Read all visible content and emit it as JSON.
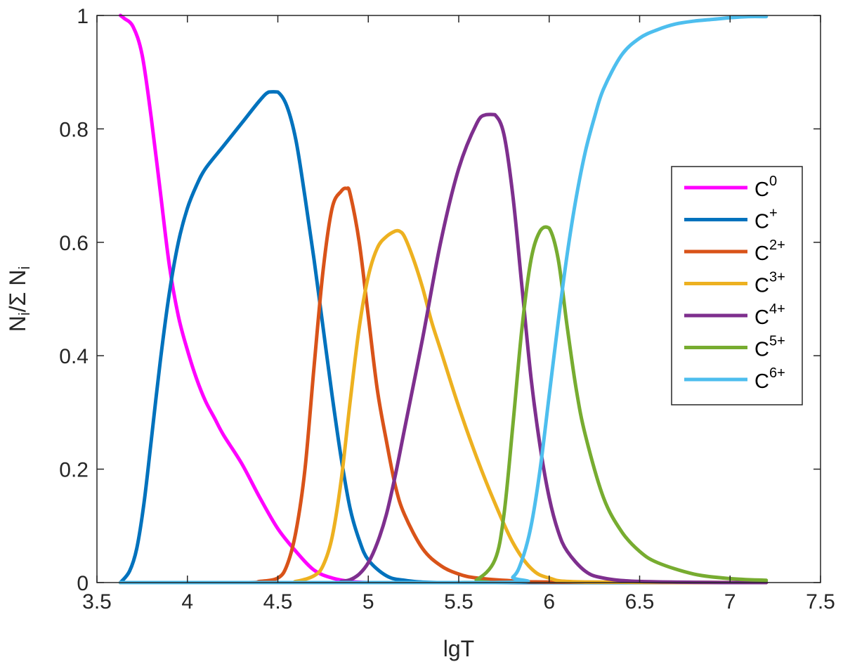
{
  "chart_data": {
    "type": "line",
    "title": "",
    "xlabel": "lgT",
    "ylabel": {
      "base": "N",
      "sub1": "i",
      "mid": "/Σ N",
      "sub2": "i"
    },
    "xlim": [
      3.5,
      7.5
    ],
    "ylim": [
      0,
      1
    ],
    "xticks": [
      "3.5",
      "4",
      "4.5",
      "5",
      "5.5",
      "6",
      "6.5",
      "7",
      "7.5"
    ],
    "yticks": [
      "0",
      "0.2",
      "0.4",
      "0.6",
      "0.8",
      "1"
    ],
    "grid": false,
    "legend_position": "right",
    "series": [
      {
        "name": "C0",
        "label_base": "C",
        "label_sup": "0",
        "color": "#ff00ff",
        "x": [
          3.63,
          3.65,
          3.7,
          3.75,
          3.8,
          3.85,
          3.9,
          3.95,
          4.0,
          4.05,
          4.1,
          4.15,
          4.2,
          4.3,
          4.4,
          4.5,
          4.6,
          4.7,
          4.8,
          4.9,
          5.0,
          5.2,
          5.5,
          6.0,
          6.5,
          7.0,
          7.2
        ],
        "y": [
          1.0,
          0.995,
          0.98,
          0.93,
          0.82,
          0.69,
          0.56,
          0.47,
          0.41,
          0.36,
          0.32,
          0.29,
          0.26,
          0.21,
          0.15,
          0.095,
          0.055,
          0.022,
          0.008,
          0.002,
          0.0,
          0.0,
          0.0,
          0.0,
          0.0,
          0.0,
          0.0
        ]
      },
      {
        "name": "C+",
        "label_base": "C",
        "label_sup": "+",
        "color": "#0072bd",
        "x": [
          3.63,
          3.68,
          3.72,
          3.76,
          3.8,
          3.85,
          3.9,
          3.95,
          4.0,
          4.05,
          4.1,
          4.2,
          4.3,
          4.4,
          4.45,
          4.5,
          4.55,
          4.6,
          4.65,
          4.7,
          4.75,
          4.8,
          4.85,
          4.9,
          4.95,
          5.0,
          5.1,
          5.2,
          5.4,
          6.0,
          7.2
        ],
        "y": [
          0.0,
          0.02,
          0.06,
          0.14,
          0.25,
          0.39,
          0.51,
          0.6,
          0.66,
          0.7,
          0.73,
          0.77,
          0.81,
          0.85,
          0.865,
          0.865,
          0.84,
          0.78,
          0.68,
          0.57,
          0.45,
          0.33,
          0.22,
          0.13,
          0.075,
          0.04,
          0.012,
          0.004,
          0.0,
          0.0,
          0.0
        ]
      },
      {
        "name": "C2+",
        "label_base": "C",
        "label_sup": "2+",
        "color": "#d95319",
        "x": [
          3.63,
          4.3,
          4.4,
          4.5,
          4.55,
          4.6,
          4.65,
          4.7,
          4.75,
          4.8,
          4.85,
          4.88,
          4.9,
          4.95,
          5.0,
          5.05,
          5.1,
          5.15,
          5.2,
          5.3,
          5.4,
          5.5,
          5.6,
          5.8,
          6.0,
          7.2
        ],
        "y": [
          0.0,
          0.0,
          0.002,
          0.008,
          0.03,
          0.09,
          0.2,
          0.38,
          0.55,
          0.66,
          0.69,
          0.695,
          0.685,
          0.6,
          0.47,
          0.34,
          0.25,
          0.17,
          0.12,
          0.06,
          0.03,
          0.015,
          0.008,
          0.003,
          0.001,
          0.0
        ]
      },
      {
        "name": "C3+",
        "label_base": "C",
        "label_sup": "3+",
        "color": "#edb120",
        "x": [
          3.63,
          4.5,
          4.6,
          4.7,
          4.75,
          4.8,
          4.85,
          4.9,
          4.95,
          5.0,
          5.05,
          5.1,
          5.15,
          5.17,
          5.2,
          5.25,
          5.3,
          5.35,
          5.4,
          5.5,
          5.6,
          5.7,
          5.8,
          5.9,
          6.0,
          6.2,
          7.2
        ],
        "y": [
          0.0,
          0.0,
          0.002,
          0.012,
          0.03,
          0.08,
          0.18,
          0.32,
          0.45,
          0.54,
          0.59,
          0.61,
          0.62,
          0.62,
          0.61,
          0.57,
          0.52,
          0.46,
          0.41,
          0.31,
          0.22,
          0.14,
          0.07,
          0.025,
          0.008,
          0.001,
          0.0
        ]
      },
      {
        "name": "C4+",
        "label_base": "C",
        "label_sup": "4+",
        "color": "#7e2f8e",
        "x": [
          3.63,
          4.8,
          4.85,
          4.9,
          4.95,
          5.0,
          5.05,
          5.1,
          5.15,
          5.2,
          5.3,
          5.4,
          5.5,
          5.6,
          5.65,
          5.7,
          5.75,
          5.8,
          5.85,
          5.9,
          5.95,
          6.0,
          6.05,
          6.1,
          6.2,
          6.3,
          6.5,
          7.0,
          7.2
        ],
        "y": [
          0.0,
          0.0,
          0.002,
          0.005,
          0.015,
          0.035,
          0.07,
          0.12,
          0.19,
          0.27,
          0.43,
          0.6,
          0.73,
          0.81,
          0.825,
          0.825,
          0.79,
          0.68,
          0.52,
          0.36,
          0.24,
          0.15,
          0.09,
          0.055,
          0.02,
          0.008,
          0.002,
          0.0,
          0.0
        ]
      },
      {
        "name": "C5+",
        "label_base": "C",
        "label_sup": "5+",
        "color": "#77ac30",
        "x": [
          3.63,
          5.5,
          5.6,
          5.7,
          5.75,
          5.8,
          5.85,
          5.9,
          5.95,
          6.0,
          6.05,
          6.1,
          6.15,
          6.2,
          6.3,
          6.4,
          6.5,
          6.6,
          6.8,
          7.0,
          7.2
        ],
        "y": [
          0.0,
          0.0,
          0.005,
          0.04,
          0.12,
          0.28,
          0.45,
          0.57,
          0.62,
          0.625,
          0.57,
          0.45,
          0.34,
          0.26,
          0.15,
          0.09,
          0.055,
          0.035,
          0.015,
          0.007,
          0.004
        ]
      },
      {
        "name": "C6+",
        "label_base": "C",
        "label_sup": "6+",
        "color": "#4dbeee",
        "x": [
          3.63,
          5.7,
          5.8,
          5.85,
          5.9,
          5.95,
          6.0,
          6.05,
          6.1,
          6.15,
          6.2,
          6.25,
          6.3,
          6.4,
          6.5,
          6.6,
          6.7,
          6.8,
          6.9,
          7.0,
          7.1,
          7.2
        ],
        "y": [
          0.0,
          0.0,
          0.01,
          0.04,
          0.1,
          0.2,
          0.33,
          0.46,
          0.58,
          0.68,
          0.76,
          0.82,
          0.87,
          0.93,
          0.96,
          0.975,
          0.985,
          0.99,
          0.993,
          0.996,
          0.998,
          0.998
        ]
      }
    ]
  }
}
